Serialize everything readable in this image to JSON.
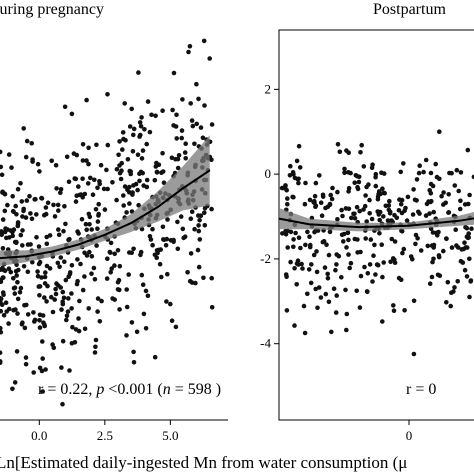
{
  "chart_data": [
    {
      "type": "scatter",
      "title": "During pregnancy",
      "xlabel": "Ln[Estimated daily-ingested Mn from water consumption (μ",
      "ylabel": "",
      "xlim": [
        -1.5,
        7.2
      ],
      "ylim": [
        -5.8,
        4.2
      ],
      "xticks": [
        "0.0",
        "2.5",
        "5.0"
      ],
      "yticks": [],
      "annotation": {
        "r": "r = 0.22, ",
        "p": "p",
        "p_rest": " <0.001 (",
        "n": "n",
        "n_rest": " = 598 )"
      },
      "point_count": 598,
      "fit_curve": {
        "x": [
          -1.5,
          -0.5,
          0.5,
          1.5,
          2.5,
          3.5,
          4.5,
          5.5,
          6.5
        ],
        "y": [
          -1.65,
          -1.6,
          -1.48,
          -1.3,
          -1.05,
          -0.75,
          -0.35,
          0.15,
          0.6
        ]
      },
      "ci_upper": [
        -1.45,
        -1.45,
        -1.35,
        -1.17,
        -0.9,
        -0.52,
        0.05,
        0.72,
        1.5
      ],
      "ci_lower": [
        -1.85,
        -1.75,
        -1.61,
        -1.43,
        -1.2,
        -0.98,
        -0.72,
        -0.42,
        -0.3
      ],
      "grid": false
    },
    {
      "type": "scatter",
      "title": "Postpartum",
      "xlabel": "",
      "ylabel": "",
      "xlim": [
        -2.6,
        1.8
      ],
      "ylim": [
        -5.8,
        3.4
      ],
      "xticks": [
        "0"
      ],
      "yticks": [
        "2",
        "0",
        "-2",
        "-4"
      ],
      "annotation": {
        "text": "r = 0"
      },
      "point_count": 450,
      "fit_curve": {
        "x": [
          -2.6,
          -2,
          -1,
          0,
          1,
          1.8
        ],
        "y": [
          -1.05,
          -1.18,
          -1.25,
          -1.22,
          -1.1,
          -0.95
        ]
      },
      "ci_upper": [
        -0.8,
        -1.05,
        -1.15,
        -1.14,
        -0.98,
        -0.75
      ],
      "ci_lower": [
        -1.3,
        -1.3,
        -1.35,
        -1.3,
        -1.22,
        -1.15
      ],
      "grid": false
    }
  ]
}
